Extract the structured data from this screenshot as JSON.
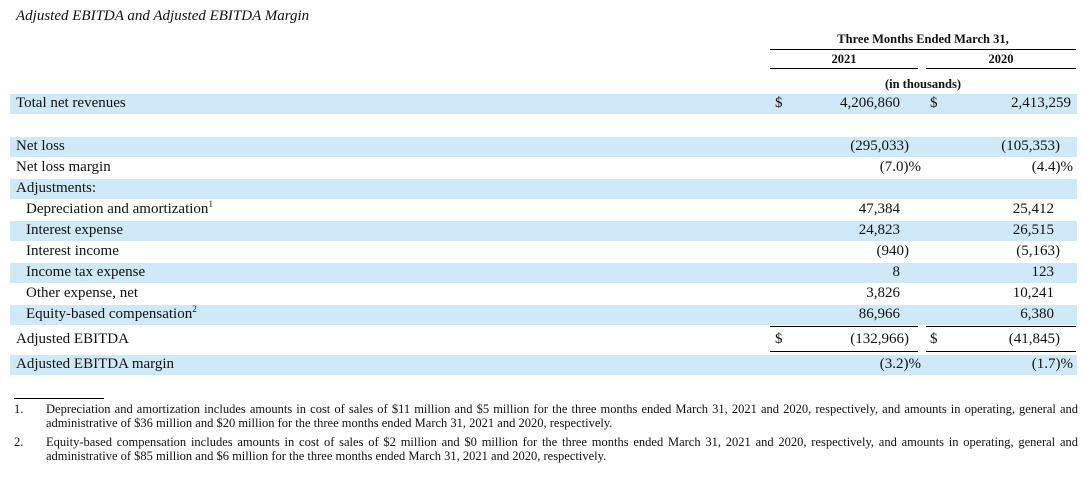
{
  "title": "Adjusted EBITDA and Adjusted EBITDA Margin",
  "header": {
    "period": "Three Months Ended March 31,",
    "col1": "2021",
    "col2": "2020",
    "units": "(in thousands)"
  },
  "rows": {
    "total_net_revenues": {
      "label": "Total net revenues",
      "cur1": "$",
      "v1": "4,206,860",
      "cur2": "$",
      "v2": "2,413,259"
    },
    "net_loss": {
      "label": "Net loss",
      "v1": "(295,033)",
      "v2": "(105,353)"
    },
    "net_loss_margin": {
      "label": "Net loss margin",
      "v1": "(7.0)%",
      "v2": "(4.4)%"
    },
    "adjustments": {
      "label": "Adjustments:"
    },
    "depreciation": {
      "label": "Depreciation and amortization",
      "sup": "1",
      "v1": "47,384",
      "v2": "25,412"
    },
    "interest_expense": {
      "label": "Interest expense",
      "v1": "24,823",
      "v2": "26,515"
    },
    "interest_income": {
      "label": "Interest income",
      "v1": "(940)",
      "v2": "(5,163)"
    },
    "income_tax": {
      "label": "Income tax expense",
      "v1": "8",
      "v2": "123"
    },
    "other_expense": {
      "label": "Other expense, net",
      "v1": "3,826",
      "v2": "10,241"
    },
    "equity_comp": {
      "label": "Equity-based compensation",
      "sup": "2",
      "v1": "86,966",
      "v2": "6,380"
    },
    "adjusted_ebitda": {
      "label": "Adjusted EBITDA",
      "cur1": "$",
      "v1": "(132,966)",
      "cur2": "$",
      "v2": "(41,845)"
    },
    "adjusted_ebitda_margin": {
      "label": "Adjusted EBITDA margin",
      "v1": "(3.2)%",
      "v2": "(1.7)%"
    }
  },
  "footnotes": [
    {
      "num": "1.",
      "text": "Depreciation and amortization includes amounts in cost of sales of $11 million and $5 million for the three months ended March 31, 2021 and 2020, respectively, and amounts in operating, general and administrative of $36 million and $20 million for the three months ended March 31, 2021 and 2020, respectively."
    },
    {
      "num": "2.",
      "text": "Equity-based compensation includes amounts in cost of sales of $2 million and $0 million for the three months ended March 31, 2021 and 2020, respectively, and amounts in operating, general and administrative of $85 million and $6 million for the three months ended March 31, 2021 and 2020, respectively."
    }
  ]
}
